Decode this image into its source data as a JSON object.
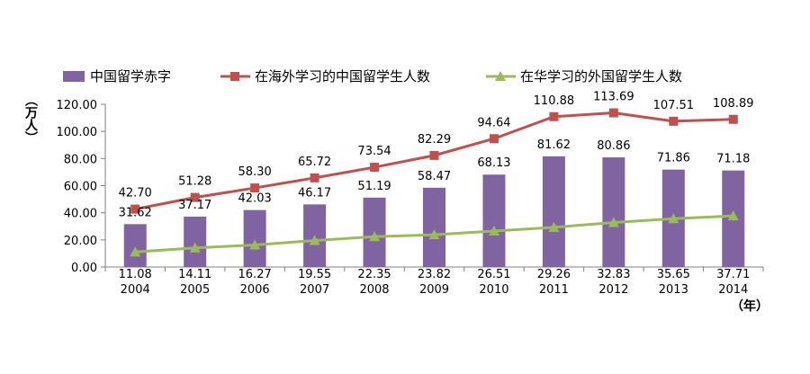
{
  "chart_data": {
    "type": "bar+line",
    "categories": [
      "2004",
      "2005",
      "2006",
      "2007",
      "2008",
      "2009",
      "2010",
      "2011",
      "2012",
      "2013",
      "2014"
    ],
    "series": [
      {
        "name": "中国留学赤字",
        "type": "bar",
        "color": "#8064a2",
        "values": [
          31.62,
          37.17,
          42.03,
          46.17,
          51.19,
          58.47,
          68.13,
          81.62,
          80.86,
          71.86,
          71.18
        ]
      },
      {
        "name": "在海外学习的中国留学生人数",
        "type": "line",
        "color": "#c0504d",
        "marker": "square",
        "values": [
          42.7,
          51.28,
          58.3,
          65.72,
          73.54,
          82.29,
          94.64,
          110.88,
          113.69,
          107.51,
          108.89
        ]
      },
      {
        "name": "在华学习的外国留学生人数",
        "type": "line",
        "color": "#9bbb59",
        "marker": "triangle",
        "values": [
          11.08,
          14.11,
          16.27,
          19.55,
          22.35,
          23.82,
          26.51,
          29.26,
          32.83,
          35.65,
          37.71
        ]
      }
    ],
    "yticks": [
      "0.00",
      "20.00",
      "40.00",
      "60.00",
      "80.00",
      "100.00",
      "120.00"
    ],
    "ylim": [
      0,
      120
    ],
    "ylabel": "（万人）",
    "xlabel": "（年）",
    "legend_position": "top",
    "grid": false
  }
}
